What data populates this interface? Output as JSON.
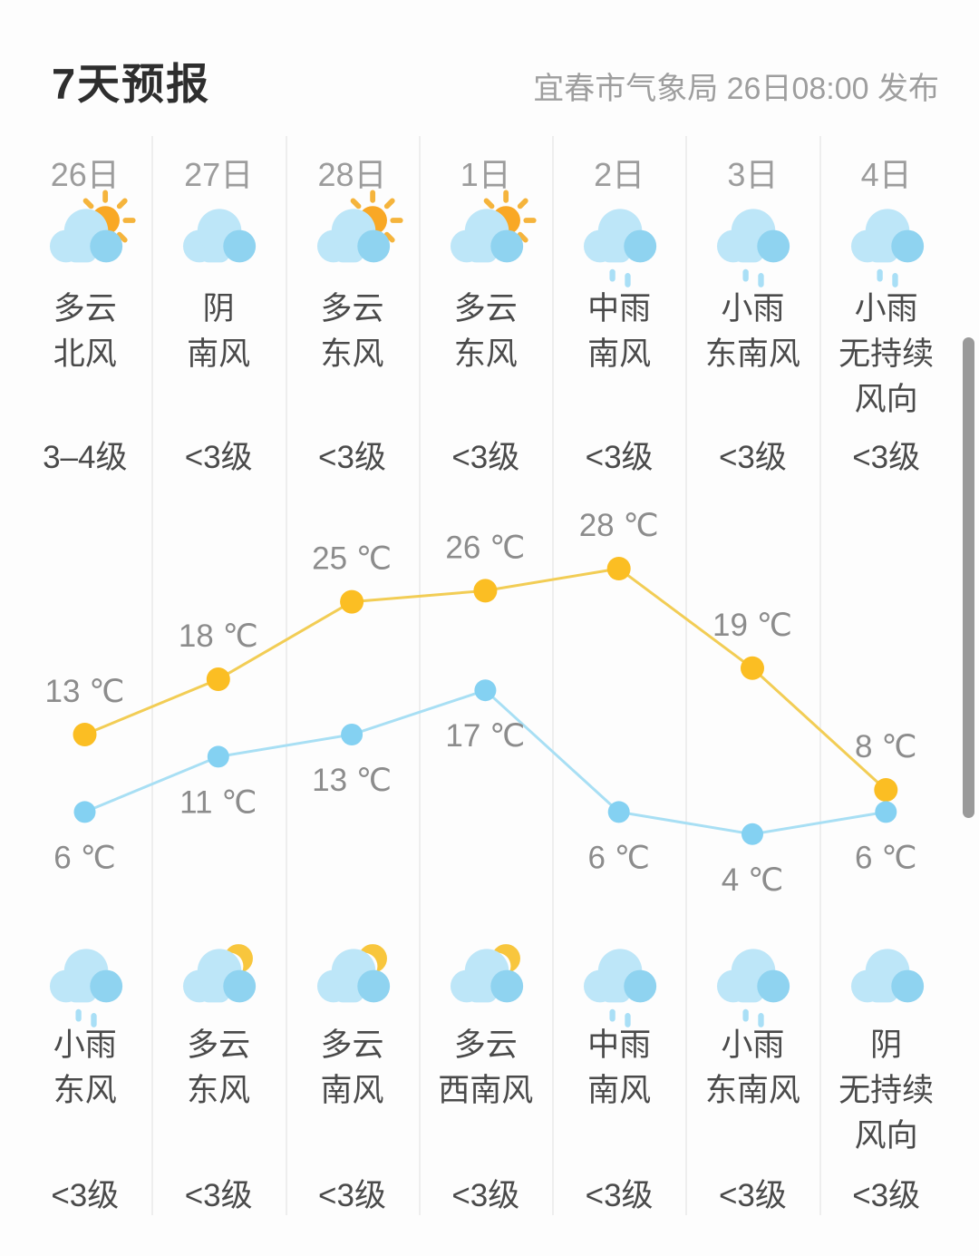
{
  "header": {
    "title": "7天预报",
    "source": "宜春市气象局 26日08:00 发布"
  },
  "columns": [
    {
      "date": "26日",
      "day": {
        "icon": "cloudy-sun",
        "condition": "多云",
        "wind": "北风",
        "level": "3–4级"
      },
      "night": {
        "icon": "rain",
        "condition": "小雨",
        "wind": "东风",
        "level": "<3级"
      }
    },
    {
      "date": "27日",
      "day": {
        "icon": "overcast",
        "condition": "阴",
        "wind": "南风",
        "level": "<3级"
      },
      "night": {
        "icon": "cloudy-moon",
        "condition": "多云",
        "wind": "东风",
        "level": "<3级"
      }
    },
    {
      "date": "28日",
      "day": {
        "icon": "cloudy-sun",
        "condition": "多云",
        "wind": "东风",
        "level": "<3级"
      },
      "night": {
        "icon": "cloudy-moon",
        "condition": "多云",
        "wind": "南风",
        "level": "<3级"
      }
    },
    {
      "date": "1日",
      "day": {
        "icon": "cloudy-sun",
        "condition": "多云",
        "wind": "东风",
        "level": "<3级"
      },
      "night": {
        "icon": "cloudy-moon",
        "condition": "多云",
        "wind": "西南风",
        "level": "<3级"
      }
    },
    {
      "date": "2日",
      "day": {
        "icon": "rain",
        "condition": "中雨",
        "wind": "南风",
        "level": "<3级"
      },
      "night": {
        "icon": "rain",
        "condition": "中雨",
        "wind": "南风",
        "level": "<3级"
      }
    },
    {
      "date": "3日",
      "day": {
        "icon": "rain",
        "condition": "小雨",
        "wind": "东南风",
        "level": "<3级"
      },
      "night": {
        "icon": "rain",
        "condition": "小雨",
        "wind": "东南风",
        "level": "<3级"
      }
    },
    {
      "date": "4日",
      "day": {
        "icon": "rain",
        "condition": "小雨",
        "wind": "无持续风向",
        "level": "<3级"
      },
      "night": {
        "icon": "overcast",
        "condition": "阴",
        "wind": "无持续风向",
        "level": "<3级"
      }
    }
  ],
  "chart_data": {
    "type": "line",
    "categories": [
      "26日",
      "27日",
      "28日",
      "1日",
      "2日",
      "3日",
      "4日"
    ],
    "series": [
      {
        "name": "high",
        "values": [
          13,
          18,
          25,
          26,
          28,
          19,
          8
        ],
        "dot_color": "#FBBE23",
        "line_color": "#F2CD55",
        "labels_position": "above"
      },
      {
        "name": "low",
        "values": [
          6,
          11,
          13,
          17,
          6,
          4,
          6
        ],
        "dot_color": "#84D1F2",
        "line_color": "#A8DFF4",
        "labels_position": "below"
      }
    ],
    "point_labels": {
      "high": [
        "13 ℃",
        "18 ℃",
        "25 ℃",
        "26 ℃",
        "28 ℃",
        "19 ℃",
        "8 ℃"
      ],
      "low": [
        "6 ℃",
        "11 ℃",
        "13 ℃",
        "17 ℃",
        "6 ℃",
        "4 ℃",
        "6 ℃"
      ]
    },
    "unit": "℃",
    "grid": false,
    "legend": false,
    "axes_visible": false
  },
  "colors": {
    "background": "#FDFDFD",
    "divider": "#EEEEEE",
    "title_text": "#2E2E2E",
    "source_text": "#9E9E9E",
    "date_text": "#9C9C9C",
    "condition_text": "#4A4A4A",
    "chart_label": "#8C8C8C",
    "scrollbar": "#9A9A9A",
    "icon": {
      "cloud_light": "#BDE6F8",
      "cloud_dark": "#8FD3F0",
      "sun": "#F9A825",
      "ray": "#F5B43C",
      "moon": "#F8C63D",
      "rain": "#A9DFF6"
    }
  }
}
